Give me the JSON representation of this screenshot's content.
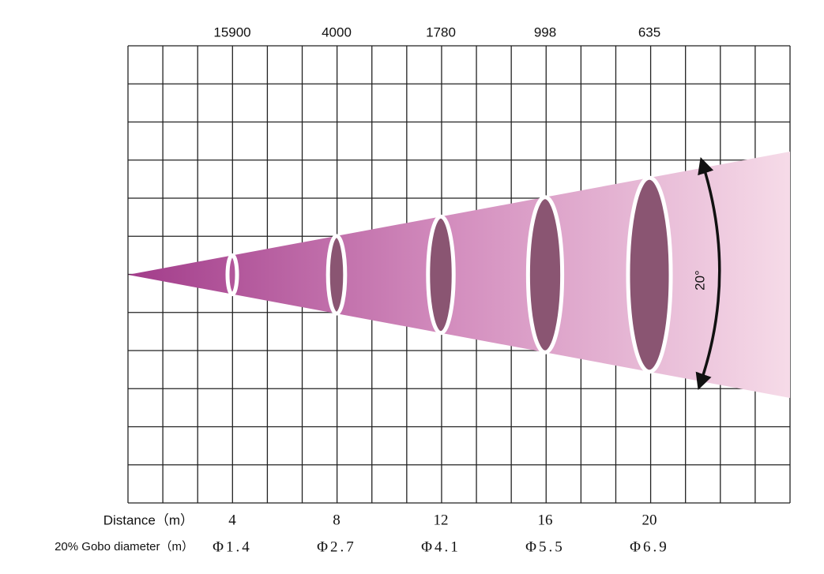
{
  "distance_label": "Distance（m）",
  "diameter_label": "20% Gobo diameter（m）",
  "angle": "20°",
  "beams": [
    {
      "distance": 4,
      "lux": 15900,
      "diameter": "Φ1.4"
    },
    {
      "distance": 8,
      "lux": 4000,
      "diameter": "Φ2.7"
    },
    {
      "distance": 12,
      "lux": 1780,
      "diameter": "Φ4.1"
    },
    {
      "distance": 16,
      "lux": 998,
      "diameter": "Φ5.5"
    },
    {
      "distance": 20,
      "lux": 635,
      "diameter": "Φ6.9"
    }
  ]
}
